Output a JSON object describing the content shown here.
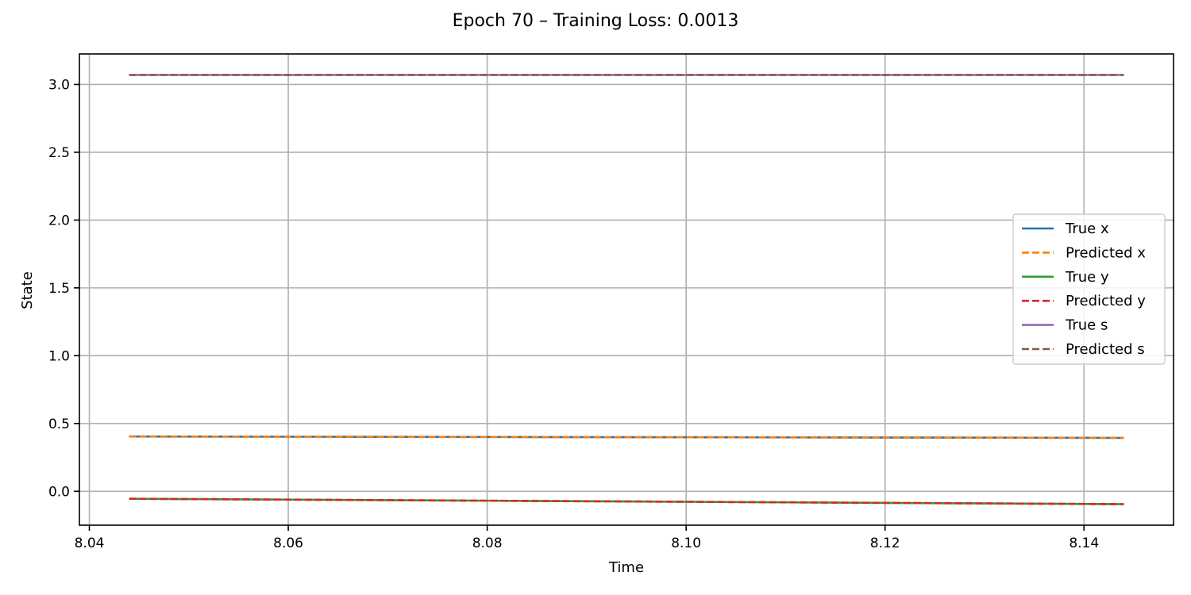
{
  "chart_data": {
    "type": "line",
    "title": "Epoch 70 – Training Loss: 0.0013",
    "xlabel": "Time",
    "ylabel": "State",
    "xlim": [
      8.039,
      8.149
    ],
    "ylim": [
      -0.25,
      3.225
    ],
    "xticks": [
      8.04,
      8.06,
      8.08,
      8.1,
      8.12,
      8.14
    ],
    "xtick_labels": [
      "8.04",
      "8.06",
      "8.08",
      "8.10",
      "8.12",
      "8.14"
    ],
    "yticks": [
      0.0,
      0.5,
      1.0,
      1.5,
      2.0,
      2.5,
      3.0
    ],
    "ytick_labels": [
      "0.0",
      "0.5",
      "1.0",
      "1.5",
      "2.0",
      "2.5",
      "3.0"
    ],
    "grid": true,
    "legend_position": "center-right",
    "x": [
      8.044,
      8.064,
      8.084,
      8.104,
      8.124,
      8.144
    ],
    "series": [
      {
        "name": "True x",
        "color": "#1f77b4",
        "dash": false,
        "values": [
          0.404,
          0.402,
          0.4,
          0.398,
          0.396,
          0.394
        ]
      },
      {
        "name": "Predicted x",
        "color": "#ff7f0e",
        "dash": true,
        "values": [
          0.404,
          0.402,
          0.4,
          0.398,
          0.396,
          0.394
        ]
      },
      {
        "name": "True y",
        "color": "#2ca02c",
        "dash": false,
        "values": [
          -0.055,
          -0.063,
          -0.071,
          -0.079,
          -0.087,
          -0.095
        ]
      },
      {
        "name": "Predicted y",
        "color": "#d62728",
        "dash": true,
        "values": [
          -0.055,
          -0.063,
          -0.071,
          -0.079,
          -0.087,
          -0.095
        ]
      },
      {
        "name": "True s",
        "color": "#9467bd",
        "dash": false,
        "values": [
          3.07,
          3.07,
          3.07,
          3.07,
          3.07,
          3.07
        ]
      },
      {
        "name": "Predicted s",
        "color": "#8c564b",
        "dash": true,
        "values": [
          3.07,
          3.07,
          3.07,
          3.07,
          3.07,
          3.07
        ]
      }
    ]
  }
}
